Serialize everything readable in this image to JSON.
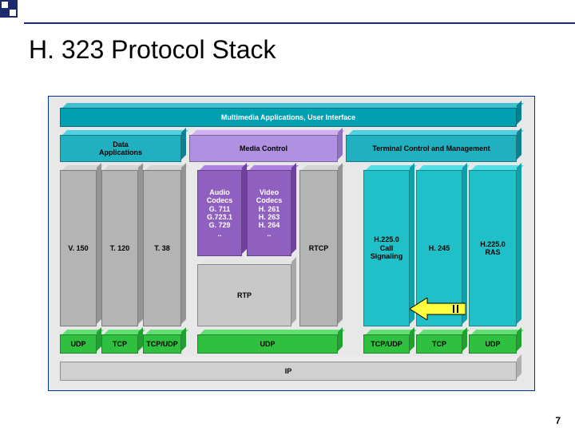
{
  "slide": {
    "title": "H. 323 Protocol Stack",
    "page_number": "7",
    "accent_color": "#1a2a6c",
    "background": "#ffffff"
  },
  "diagram": {
    "border_color": "#003399",
    "bg_color": "#e8e8e8",
    "boxes": {
      "app_layer": {
        "label": "Multimedia Applications, User Interface",
        "front": "#00a0b0",
        "top": "#40c0d0",
        "side": "#008090",
        "tc": "#ffffff"
      },
      "data_apps": {
        "label": "Data\nApplications",
        "front": "#20b0c0",
        "top": "#50d0e0",
        "side": "#108090",
        "tc": "#000000"
      },
      "media_ctrl": {
        "label": "Media Control",
        "front": "#b090e0",
        "top": "#d0b0f0",
        "side": "#9070c0",
        "tc": "#000000"
      },
      "term_ctrl": {
        "label": "Terminal Control and Management",
        "front": "#20b0c0",
        "top": "#50d0e0",
        "side": "#108090",
        "tc": "#000000"
      },
      "v150": {
        "label": "V. 150",
        "front": "#b4b4b4",
        "top": "#d4d4d4",
        "side": "#949494",
        "tc": "#000000"
      },
      "t120": {
        "label": "T. 120",
        "front": "#b4b4b4",
        "top": "#d4d4d4",
        "side": "#949494",
        "tc": "#000000"
      },
      "t38": {
        "label": "T. 38",
        "front": "#b4b4b4",
        "top": "#d4d4d4",
        "side": "#949494",
        "tc": "#000000"
      },
      "audio": {
        "label": "Audio\nCodecs\nG. 711\nG.723.1\nG. 729\n..",
        "front": "#9060c0",
        "top": "#b080e0",
        "side": "#7040a0",
        "tc": "#ffffff"
      },
      "video": {
        "label": "Video\nCodecs\nH. 261\nH. 263\nH. 264\n..",
        "front": "#9060c0",
        "top": "#b080e0",
        "side": "#7040a0",
        "tc": "#ffffff"
      },
      "rtcp": {
        "label": "RTCP",
        "front": "#b4b4b4",
        "top": "#d4d4d4",
        "side": "#949494",
        "tc": "#000000"
      },
      "h225cs": {
        "label": "H.225.0\nCall\nSignaling",
        "front": "#20c0c8",
        "top": "#50e0e8",
        "side": "#10a0a8",
        "tc": "#000000"
      },
      "h245": {
        "label": "H. 245",
        "front": "#20c0c8",
        "top": "#50e0e8",
        "side": "#10a0a8",
        "tc": "#000000"
      },
      "h225ras": {
        "label": "H.225.0\nRAS",
        "front": "#20c0c8",
        "top": "#50e0e8",
        "side": "#10a0a8",
        "tc": "#000000"
      },
      "rtp": {
        "label": "RTP",
        "front": "#c8c8c8",
        "top": "#e4e4e4",
        "side": "#a8a8a8",
        "tc": "#000000"
      },
      "udp1": {
        "label": "UDP",
        "front": "#30c040",
        "top": "#60e070",
        "side": "#20a030",
        "tc": "#000000"
      },
      "tcp1": {
        "label": "TCP",
        "front": "#30c040",
        "top": "#60e070",
        "side": "#20a030",
        "tc": "#000000"
      },
      "tcpudp1": {
        "label": "TCP/UDP",
        "front": "#30c040",
        "top": "#60e070",
        "side": "#20a030",
        "tc": "#000000"
      },
      "udp2": {
        "label": "UDP",
        "front": "#30c040",
        "top": "#60e070",
        "side": "#20a030",
        "tc": "#000000"
      },
      "tcpudp2": {
        "label": "TCP/UDP",
        "front": "#30c040",
        "top": "#60e070",
        "side": "#20a030",
        "tc": "#000000"
      },
      "tcp2": {
        "label": "TCP",
        "front": "#30c040",
        "top": "#60e070",
        "side": "#20a030",
        "tc": "#000000"
      },
      "udp3": {
        "label": "UDP",
        "front": "#30c040",
        "top": "#60e070",
        "side": "#20a030",
        "tc": "#000000"
      },
      "ip": {
        "label": "IP",
        "front": "#d0d0d0",
        "top": "#ececec",
        "side": "#b0b0b0",
        "tc": "#000000"
      }
    },
    "arrow": {
      "fill": "#ffff40",
      "stroke": "#000000"
    }
  }
}
